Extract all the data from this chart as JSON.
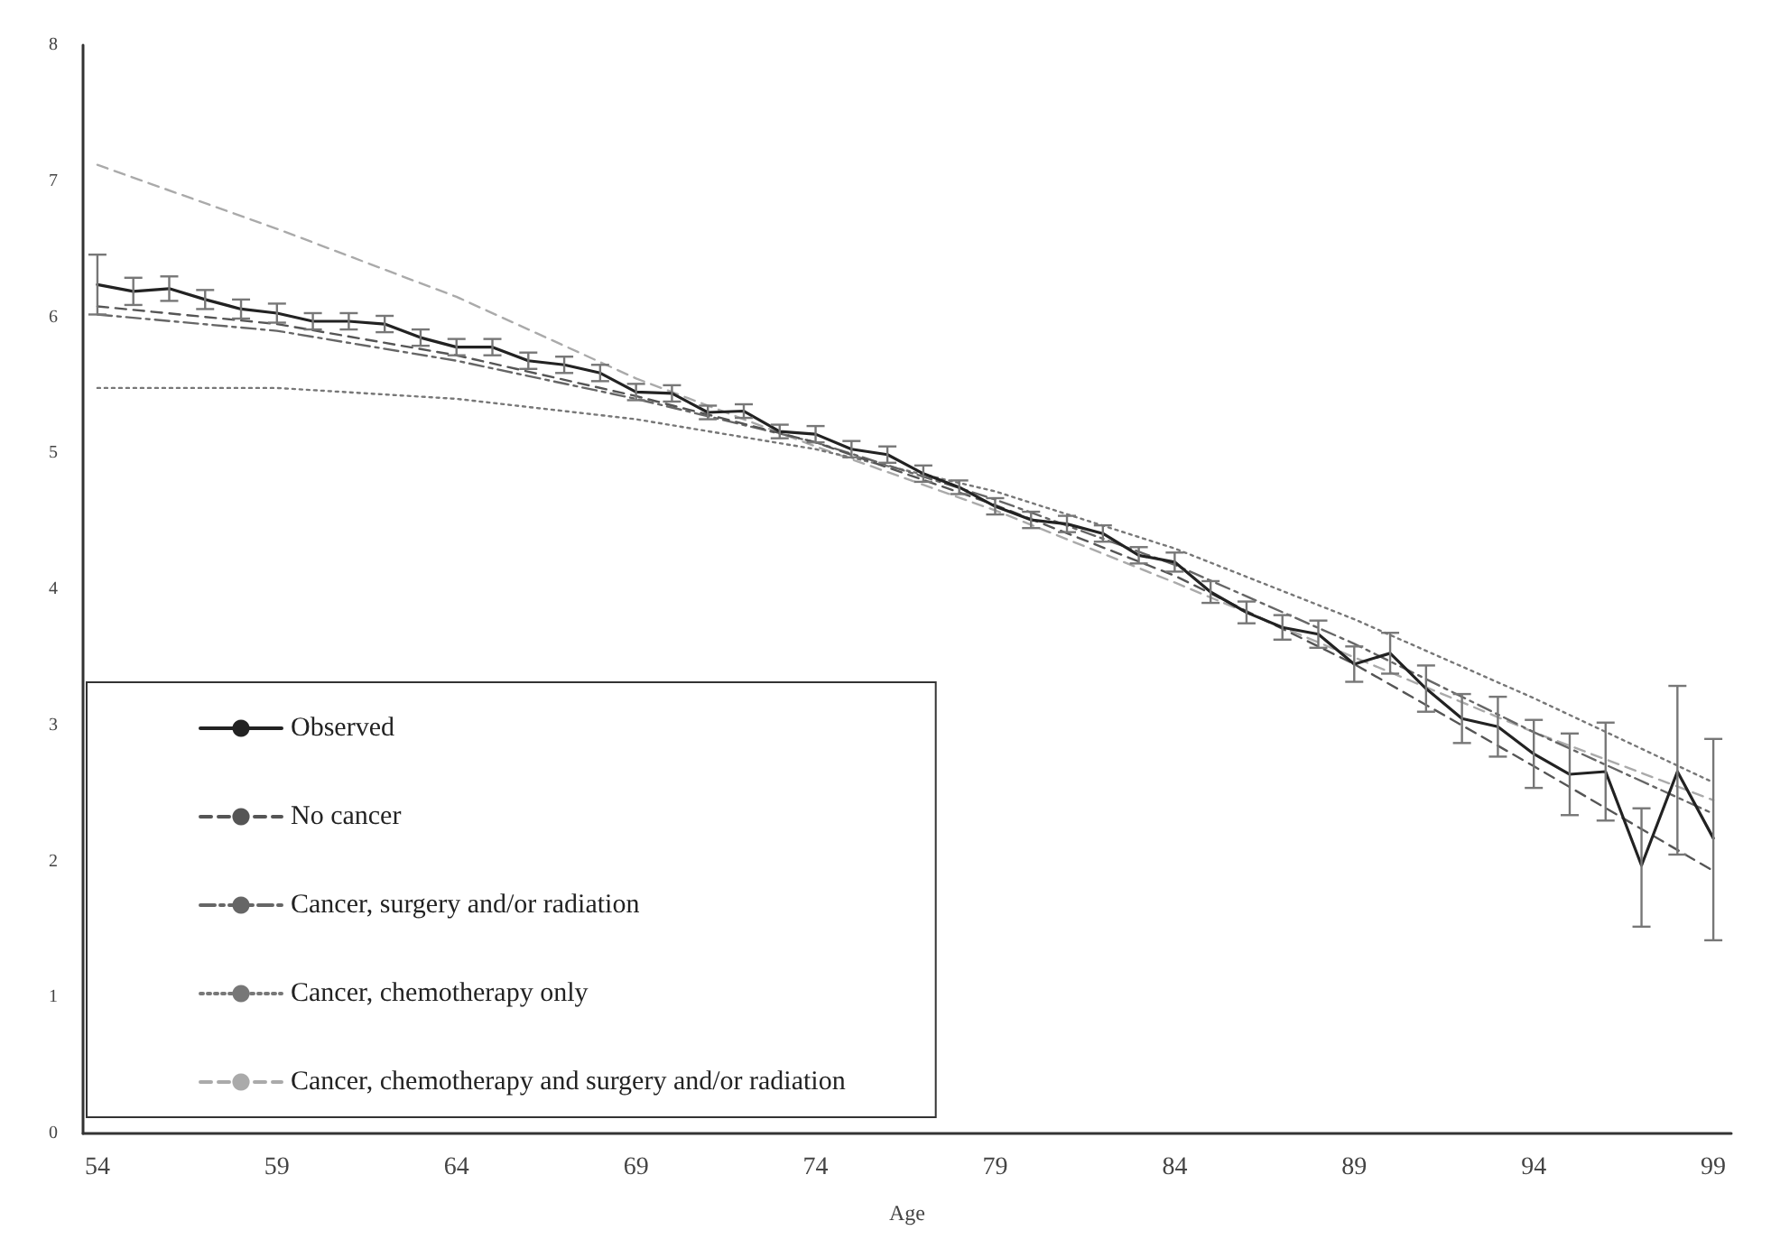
{
  "chart_data": {
    "type": "line",
    "xlabel": "Age",
    "x": [
      54,
      55,
      56,
      57,
      58,
      59,
      60,
      61,
      62,
      63,
      64,
      65,
      66,
      67,
      68,
      69,
      70,
      71,
      72,
      73,
      74,
      75,
      76,
      77,
      78,
      79,
      80,
      81,
      82,
      83,
      84,
      85,
      86,
      87,
      88,
      89,
      90,
      91,
      92,
      93,
      94,
      95,
      96,
      97,
      98,
      99
    ],
    "xlim": [
      53.6,
      99.5
    ],
    "xticks": [
      54,
      59,
      64,
      69,
      74,
      79,
      84,
      89,
      94,
      99
    ],
    "ylim": [
      0,
      8
    ],
    "yticks": [
      0,
      1,
      2,
      3,
      4,
      5,
      6,
      7,
      8
    ],
    "grid": false,
    "legend": "bottom left",
    "marker": "none",
    "series": [
      {
        "name": "Observed",
        "color": "#222222",
        "line_style": "solid",
        "values": [
          6.24,
          6.19,
          6.21,
          6.13,
          6.06,
          6.03,
          5.97,
          5.97,
          5.95,
          5.85,
          5.78,
          5.78,
          5.68,
          5.65,
          5.59,
          5.45,
          5.44,
          5.3,
          5.31,
          5.16,
          5.14,
          5.03,
          4.99,
          4.85,
          4.75,
          4.61,
          4.51,
          4.48,
          4.41,
          4.25,
          4.2,
          3.98,
          3.83,
          3.72,
          3.67,
          3.45,
          3.53,
          3.27,
          3.05,
          2.99,
          2.79,
          2.64,
          2.66,
          1.97,
          2.66,
          2.17
        ],
        "errors": [
          0.22,
          0.1,
          0.09,
          0.07,
          0.07,
          0.07,
          0.06,
          0.06,
          0.06,
          0.06,
          0.06,
          0.06,
          0.06,
          0.06,
          0.06,
          0.06,
          0.06,
          0.05,
          0.05,
          0.05,
          0.06,
          0.06,
          0.06,
          0.06,
          0.05,
          0.06,
          0.06,
          0.06,
          0.06,
          0.06,
          0.07,
          0.08,
          0.08,
          0.09,
          0.1,
          0.13,
          0.15,
          0.17,
          0.18,
          0.22,
          0.25,
          0.3,
          0.36,
          [
            1.52,
            2.39
          ],
          [
            2.05,
            3.29
          ],
          [
            1.42,
            2.9
          ]
        ]
      },
      {
        "name": "No cancer",
        "color": "#555555",
        "line_style": "dashed",
        "x": [
          54,
          59,
          64,
          69,
          74,
          79,
          84,
          89,
          94,
          99
        ],
        "values": [
          6.08,
          5.95,
          5.72,
          5.42,
          5.08,
          4.62,
          4.1,
          3.45,
          2.7,
          1.93
        ]
      },
      {
        "name": "Cancer, surgery and/or radiation",
        "color": "#666666",
        "line_style": "dashdot",
        "x": [
          54,
          59,
          64,
          69,
          74,
          79,
          84,
          89,
          94,
          99
        ],
        "values": [
          6.02,
          5.9,
          5.68,
          5.4,
          5.08,
          4.66,
          4.18,
          3.6,
          2.95,
          2.35
        ]
      },
      {
        "name": "Cancer, chemotherapy only",
        "color": "#777777",
        "line_style": "dotted",
        "x": [
          54,
          59,
          64,
          69,
          74,
          79,
          84,
          89,
          94,
          99
        ],
        "values": [
          5.48,
          5.48,
          5.4,
          5.25,
          5.03,
          4.72,
          4.3,
          3.78,
          3.2,
          2.58
        ]
      },
      {
        "name": "Cancer, chemotherapy and surgery and/or radiation",
        "color": "#aaaaaa",
        "line_style": "dashed",
        "x": [
          54,
          59,
          64,
          69,
          74,
          79,
          84,
          89,
          94,
          99
        ],
        "values": [
          7.12,
          6.65,
          6.15,
          5.55,
          5.05,
          4.58,
          4.05,
          3.5,
          2.95,
          2.45
        ]
      }
    ]
  }
}
